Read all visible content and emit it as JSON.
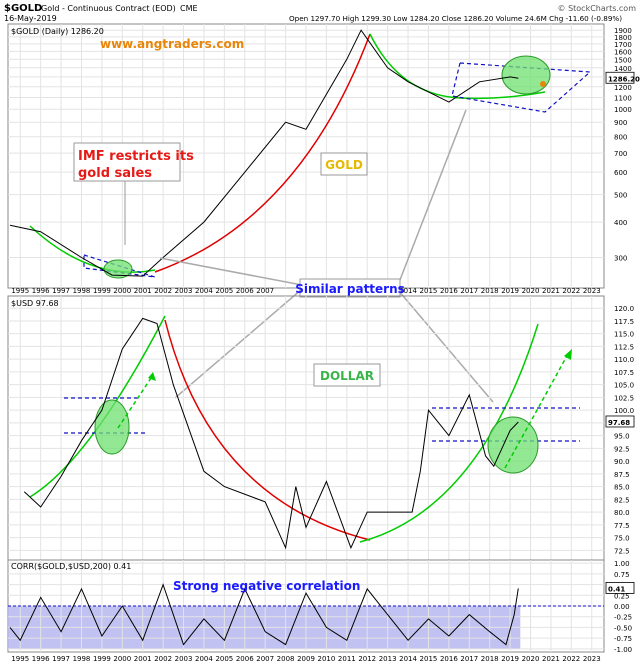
{
  "header": {
    "symbol": "$GOLD",
    "description": "Gold - Continuous Contract (EOD)",
    "exchange": "CME",
    "date": "16-May-2019",
    "ohlc": "Open 1297.70  High 1299.30  Low 1284.20  Close 1286.20  Volume 24.6M  Chg -11.60 (-0.89%)",
    "watermark": "© StockCharts.com"
  },
  "chart_data": [
    {
      "type": "line",
      "panel": "gold",
      "legend_text": "$GOLD (Daily) 1286.20",
      "last_value_label": "1286.20",
      "y_scale": "log",
      "ylim": [
        240,
        1950
      ],
      "y_ticks": [
        1900,
        1800,
        1700,
        1600,
        1500,
        1400,
        1300,
        1200,
        1100,
        1000,
        900,
        800,
        700,
        600,
        500,
        400,
        300
      ],
      "x": [
        "1994.5",
        "1996",
        "1998",
        "1999.5",
        "2001",
        "2002",
        "2004",
        "2006",
        "2008",
        "2009",
        "2011",
        "2011.7",
        "2013",
        "2014",
        "2016",
        "2017.5",
        "2019",
        "2019.4"
      ],
      "values": [
        390,
        370,
        300,
        260,
        258,
        300,
        400,
        600,
        900,
        850,
        1500,
        1900,
        1400,
        1250,
        1060,
        1250,
        1300,
        1286
      ],
      "series_color": "#000000",
      "annotations": [
        {
          "text": "www.angtraders.com",
          "color": "#e8860b"
        },
        {
          "text": "IMF restricts its\ngold sales",
          "color": "#e41b17"
        },
        {
          "text": "GOLD",
          "color": "#e6b800"
        },
        {
          "text": "Similar patterns",
          "color": "#1a1aff"
        }
      ]
    },
    {
      "type": "line",
      "panel": "dollar",
      "legend_text": "$USD 97.68",
      "last_value_label": "97.68",
      "ylim": [
        71,
        122
      ],
      "y_ticks": [
        120.0,
        117.5,
        115.0,
        112.5,
        110.0,
        107.5,
        105.0,
        102.5,
        100.0,
        97.5,
        95.0,
        92.5,
        90.0,
        87.5,
        85.0,
        82.5,
        80.0,
        77.5,
        75.0,
        72.5
      ],
      "x": [
        "1995.2",
        "1996",
        "1997",
        "1998",
        "1999",
        "2000",
        "2001",
        "2001.7",
        "2002.5",
        "2004",
        "2005",
        "2007",
        "2008",
        "2008.5",
        "2009",
        "2010",
        "2011.2",
        "2012",
        "2013",
        "2014.2",
        "2014.6",
        "2015",
        "2016",
        "2017",
        "2017.8",
        "2018.2",
        "2019",
        "2019.4"
      ],
      "values": [
        84,
        81,
        87,
        94,
        100,
        112,
        118,
        117,
        105,
        88,
        85,
        82,
        73,
        85,
        77,
        86,
        73,
        80,
        80,
        80,
        88,
        100,
        95,
        103,
        91,
        89,
        96,
        97.68
      ],
      "series_color": "#000000",
      "annotations": [
        {
          "text": "DOLLAR",
          "color": "#3ab54a"
        }
      ]
    },
    {
      "type": "area",
      "panel": "correlation",
      "legend_text": "CORR($GOLD,$USD,200) 0.41",
      "last_value_label": "0.41",
      "ylim": [
        -1.05,
        1.05
      ],
      "y_ticks": [
        1.0,
        0.75,
        0.5,
        0.25,
        0.0,
        -0.25,
        -0.5,
        -0.75,
        -1.0
      ],
      "x": [
        "1994.5",
        "1995",
        "1996",
        "1997",
        "1998",
        "1999",
        "2000",
        "2001",
        "2002",
        "2003",
        "2004",
        "2005",
        "2006",
        "2007",
        "2008",
        "2009",
        "2010",
        "2011",
        "2012",
        "2013",
        "2014",
        "2015",
        "2016",
        "2017",
        "2018",
        "2018.8",
        "2019.2",
        "2019.4"
      ],
      "values": [
        -0.5,
        -0.8,
        0.2,
        -0.6,
        0.4,
        -0.7,
        0.0,
        -0.8,
        0.5,
        -0.9,
        -0.3,
        -0.8,
        0.4,
        -0.6,
        -0.9,
        0.3,
        -0.5,
        -0.8,
        0.4,
        -0.2,
        -0.8,
        -0.3,
        -0.7,
        -0.2,
        -0.6,
        -0.9,
        -0.2,
        0.41
      ],
      "shade_range": [
        -1.0,
        0.0
      ],
      "annotations": [
        {
          "text": "Strong negative correlation",
          "color": "#1a1aff"
        }
      ]
    }
  ],
  "x_axis": {
    "ticks": [
      "1995",
      "1996",
      "1997",
      "1998",
      "1999",
      "2000",
      "2001",
      "2002",
      "2003",
      "2004",
      "2005",
      "2006",
      "2007",
      "2008",
      "2009",
      "2010",
      "2011",
      "2012",
      "2013",
      "2014",
      "2015",
      "2016",
      "2017",
      "2018",
      "2019",
      "2020",
      "2021",
      "2022",
      "2023"
    ]
  },
  "colors": {
    "up_curve": "#00cc00",
    "down_curve": "#e00000",
    "channel": "#1010c8",
    "highlight_fill": "#6fe06f",
    "corr_fill": "#b7b7f0",
    "grid": "#e3e3e3"
  }
}
